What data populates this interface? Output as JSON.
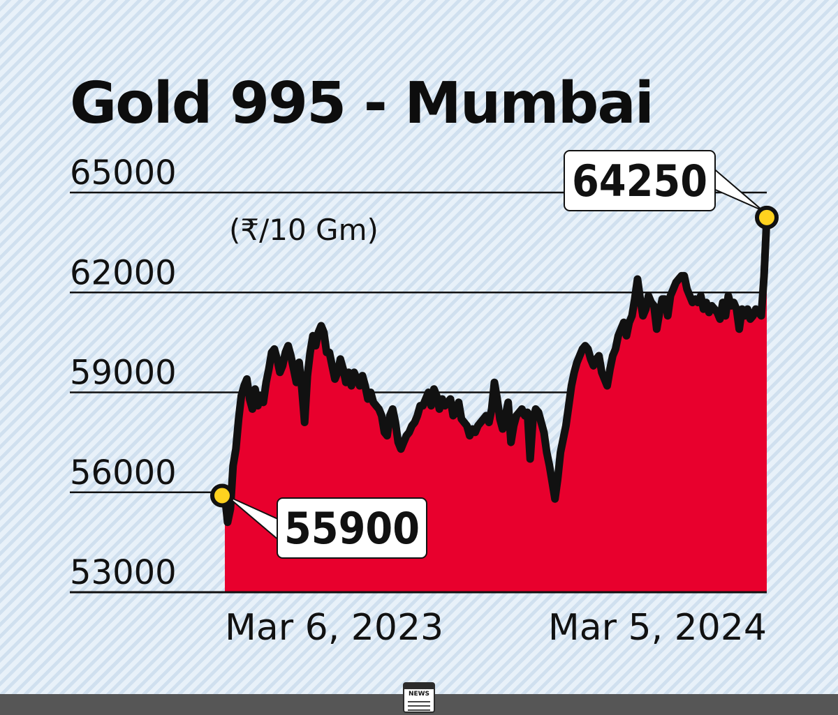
{
  "chart_data": {
    "type": "area",
    "title": "Gold 995 - Mumbai",
    "unit": "(₹/10 Gm)",
    "y_ticks": [
      65000,
      62000,
      59000,
      56000,
      53000
    ],
    "ylim": [
      53000,
      65000
    ],
    "x_labels": [
      "Mar 6, 2023",
      "Mar 5, 2024"
    ],
    "grid": true,
    "colors": {
      "area": "#e8002d",
      "line": "#111111",
      "marker": "#ffd21f"
    },
    "start_callout": "55900",
    "end_callout": "64250",
    "series": [
      {
        "values": [
          55900,
          55100,
          55500,
          56800,
          57300,
          58200,
          58900,
          59200,
          59400,
          58800,
          58500,
          59100,
          58600,
          58900,
          58700,
          59300,
          59700,
          60200,
          60300,
          60000,
          59600,
          59800,
          60200,
          60400,
          60100,
          59700,
          59300,
          59900,
          59100,
          58100,
          59500,
          60200,
          60700,
          60400,
          60800,
          61000,
          60800,
          60200,
          60200,
          59800,
          59400,
          59600,
          60000,
          59700,
          59300,
          59600,
          59200,
          59600,
          59400,
          59200,
          59500,
          59200,
          58800,
          59000,
          58700,
          58600,
          58500,
          58300,
          57800,
          57700,
          58300,
          58500,
          58100,
          57500,
          57300,
          57500,
          57700,
          57800,
          58000,
          58100,
          58300,
          58600,
          58600,
          58800,
          59000,
          58600,
          59100,
          58900,
          58500,
          58800,
          58600,
          58700,
          58800,
          58300,
          58400,
          58700,
          58200,
          58100,
          58000,
          57700,
          57900,
          57800,
          58000,
          58100,
          58200,
          58300,
          58100,
          58500,
          59300,
          58800,
          58200,
          57900,
          58300,
          58700,
          57500,
          58000,
          58300,
          58400,
          58500,
          58300,
          58400,
          57000,
          58200,
          58500,
          58400,
          58100,
          57800,
          57200,
          56800,
          56300,
          55800,
          56400,
          57200,
          57600,
          58000,
          58600,
          59200,
          59600,
          59900,
          60100,
          60300,
          60400,
          60300,
          60000,
          59800,
          60000,
          60100,
          59600,
          59400,
          59200,
          59700,
          60100,
          60300,
          60700,
          60900,
          61100,
          60700,
          61100,
          61300,
          61800,
          62400,
          61800,
          61300,
          61500,
          61900,
          61700,
          61600,
          60900,
          61400,
          61800,
          61800,
          61300,
          61900,
          62100,
          62300,
          62400,
          62500,
          62500,
          62100,
          61900,
          61700,
          61800,
          61700,
          61900,
          61500,
          61700,
          61400,
          61600,
          61500,
          61400,
          61200,
          61700,
          61300,
          61900,
          61600,
          61700,
          61500,
          60900,
          61500,
          61300,
          61500,
          61200,
          61300,
          61500,
          61400,
          61300,
          62500,
          64250
        ]
      }
    ]
  }
}
